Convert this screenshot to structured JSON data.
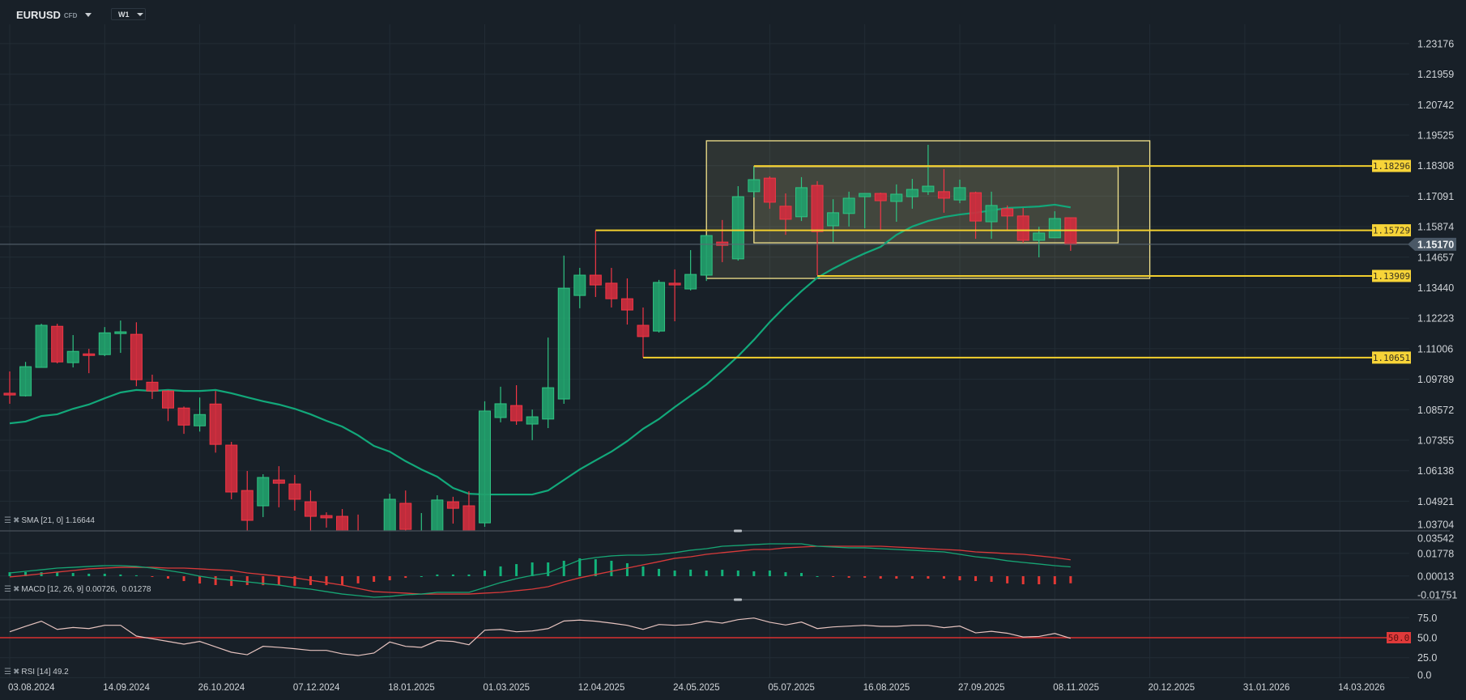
{
  "header": {
    "symbol": "EURUSD",
    "symbol_type": "CFD",
    "timeframe": "W1"
  },
  "indicators": {
    "sma": {
      "label": "SMA [21, 0] 1.16644"
    },
    "macd": {
      "label": "MACD [12, 26, 9] 0.00726,  0.01278"
    },
    "rsi": {
      "label": "RSI [14] 49.2"
    }
  },
  "colors": {
    "background": "#182028",
    "grid": "#222c35",
    "up": "#22a06b",
    "up_border": "#2fc382",
    "down": "#cf2e3e",
    "down_border": "#f23645",
    "sma": "#12a87a",
    "level": "#f2cf2e",
    "macd_line": "#17a574",
    "signal_line": "#d83a3a",
    "rsi_line": "#e6c3bf",
    "rsi_level": "#d93030",
    "price_tag": "#4a5866"
  },
  "chart_data": {
    "type": "candlestick",
    "title": "EURUSD W1",
    "price_axis": {
      "range": [
        1.03704,
        1.23176
      ],
      "ticks": [
        "1.23176",
        "1.21959",
        "1.20742",
        "1.19525",
        "1.18308",
        "1.17091",
        "1.15874",
        "1.14657",
        "1.13440",
        "1.12223",
        "1.11006",
        "1.09789",
        "1.08572",
        "1.07355",
        "1.06138",
        "1.04921",
        "1.03704"
      ]
    },
    "date_labels": [
      {
        "index": 0,
        "label": "03.08.2024"
      },
      {
        "index": 6,
        "label": "14.09.2024"
      },
      {
        "index": 12,
        "label": "26.10.2024"
      },
      {
        "index": 18,
        "label": "07.12.2024"
      },
      {
        "index": 24,
        "label": "18.01.2025"
      },
      {
        "index": 30,
        "label": "01.03.2025"
      },
      {
        "index": 36,
        "label": "12.04.2025"
      },
      {
        "index": 42,
        "label": "24.05.2025"
      },
      {
        "index": 48,
        "label": "05.07.2025"
      },
      {
        "index": 54,
        "label": "16.08.2025"
      },
      {
        "index": 60,
        "label": "27.09.2025"
      },
      {
        "index": 66,
        "label": "08.11.2025"
      },
      {
        "index": 72,
        "label": "20.12.2025"
      },
      {
        "index": 78,
        "label": "31.01.2026"
      },
      {
        "index": 84,
        "label": "14.03.2026"
      }
    ],
    "current_price": {
      "value": 1.1517,
      "label": "1.15170"
    },
    "candles_ohlc": [
      [
        1.0923,
        1.101,
        1.0881,
        1.0916
      ],
      [
        1.0913,
        1.1048,
        1.091,
        1.1029
      ],
      [
        1.1026,
        1.12,
        1.1026,
        1.1194
      ],
      [
        1.119,
        1.12,
        1.1042,
        1.1048
      ],
      [
        1.1045,
        1.1155,
        1.1026,
        1.109
      ],
      [
        1.108,
        1.11,
        1.1003,
        1.1074
      ],
      [
        1.1077,
        1.1187,
        1.1071,
        1.1164
      ],
      [
        1.1161,
        1.1213,
        1.1084,
        1.1168
      ],
      [
        1.1158,
        1.1206,
        1.0951,
        1.0977
      ],
      [
        1.0967,
        1.0997,
        1.09,
        1.0932
      ],
      [
        1.0932,
        1.0935,
        1.0812,
        1.0864
      ],
      [
        1.0864,
        1.087,
        1.0761,
        1.0796
      ],
      [
        1.0793,
        1.0906,
        1.077,
        1.0838
      ],
      [
        1.088,
        1.0932,
        1.0686,
        1.0719
      ],
      [
        1.0716,
        1.0729,
        1.05,
        1.0529
      ],
      [
        1.0535,
        1.0613,
        1.0355,
        1.0416
      ],
      [
        1.0474,
        1.06,
        1.0429,
        1.0587
      ],
      [
        1.0577,
        1.0632,
        1.0468,
        1.0564
      ],
      [
        1.0561,
        1.0597,
        1.0455,
        1.05
      ],
      [
        1.049,
        1.0535,
        1.0374,
        1.0432
      ],
      [
        1.0435,
        1.0448,
        1.0387,
        1.0426
      ],
      [
        1.0432,
        1.0461,
        1.0329,
        1.0348
      ],
      [
        1.0361,
        1.0439,
        1.0232,
        1.028
      ],
      [
        1.03,
        1.0345,
        1.0178,
        1.0245
      ],
      [
        1.027,
        1.0522,
        1.024,
        1.05
      ],
      [
        1.0484,
        1.0535,
        1.034,
        1.038
      ],
      [
        1.03,
        1.0445,
        1.026,
        1.037
      ],
      [
        1.035,
        1.0516,
        1.033,
        1.0497
      ],
      [
        1.049,
        1.051,
        1.0403,
        1.0464
      ],
      [
        1.0474,
        1.0532,
        1.036,
        1.0365
      ],
      [
        1.0406,
        1.0891,
        1.039,
        1.0852
      ],
      [
        1.0826,
        1.0949,
        1.0807,
        1.0881
      ],
      [
        1.0874,
        1.0955,
        1.0797,
        1.0813
      ],
      [
        1.08,
        1.0858,
        1.0736,
        1.0829
      ],
      [
        1.082,
        1.1145,
        1.0784,
        1.0945
      ],
      [
        1.09,
        1.1472,
        1.0881,
        1.1342
      ],
      [
        1.1313,
        1.1423,
        1.1262,
        1.1394
      ],
      [
        1.1394,
        1.1572,
        1.1307,
        1.1355
      ],
      [
        1.1362,
        1.1423,
        1.1265,
        1.13
      ],
      [
        1.13,
        1.1381,
        1.1197,
        1.1255
      ],
      [
        1.1194,
        1.1265,
        1.1065,
        1.1149
      ],
      [
        1.1171,
        1.1375,
        1.1165,
        1.1365
      ],
      [
        1.1362,
        1.1417,
        1.121,
        1.1355
      ],
      [
        1.1339,
        1.1494,
        1.1333,
        1.1397
      ],
      [
        1.1394,
        1.1552,
        1.1371,
        1.1552
      ],
      [
        1.1526,
        1.1614,
        1.1446,
        1.1513
      ],
      [
        1.1459,
        1.1749,
        1.1452,
        1.1707
      ],
      [
        1.1727,
        1.1827,
        1.1704,
        1.1775
      ],
      [
        1.1781,
        1.1788,
        1.1659,
        1.1685
      ],
      [
        1.1669,
        1.172,
        1.1555,
        1.1617
      ],
      [
        1.1627,
        1.1785,
        1.161,
        1.1743
      ],
      [
        1.1752,
        1.1769,
        1.1394,
        1.1568
      ],
      [
        1.1591,
        1.1697,
        1.1526,
        1.1643
      ],
      [
        1.164,
        1.1727,
        1.1588,
        1.1701
      ],
      [
        1.1707,
        1.172,
        1.1581,
        1.172
      ],
      [
        1.172,
        1.1723,
        1.1572,
        1.1691
      ],
      [
        1.1688,
        1.1756,
        1.1607,
        1.1717
      ],
      [
        1.1707,
        1.1778,
        1.1659,
        1.1736
      ],
      [
        1.1727,
        1.1914,
        1.1714,
        1.1749
      ],
      [
        1.1727,
        1.1817,
        1.1643,
        1.1701
      ],
      [
        1.1694,
        1.1775,
        1.1681,
        1.1743
      ],
      [
        1.1723,
        1.1727,
        1.1539,
        1.161
      ],
      [
        1.1607,
        1.1727,
        1.1539,
        1.1672
      ],
      [
        1.1659,
        1.1672,
        1.1575,
        1.163
      ],
      [
        1.163,
        1.1662,
        1.1523,
        1.1533
      ],
      [
        1.1533,
        1.1587,
        1.1465,
        1.1562
      ],
      [
        1.1543,
        1.1649,
        1.1543,
        1.162
      ],
      [
        1.1623,
        1.1623,
        1.1491,
        1.1517
      ]
    ],
    "sma21": [
      1.0803,
      1.081,
      1.0832,
      1.0839,
      1.0861,
      1.0878,
      1.0903,
      1.0926,
      1.0936,
      1.0932,
      1.0936,
      1.0932,
      1.0932,
      1.0936,
      1.0923,
      1.0907,
      1.0891,
      1.0878,
      1.0861,
      1.0839,
      1.0813,
      1.079,
      1.0755,
      1.0713,
      1.069,
      1.0652,
      1.0619,
      1.059,
      1.0545,
      1.0522,
      1.0519,
      1.0519,
      1.0519,
      1.0519,
      1.0535,
      1.0577,
      1.0619,
      1.0655,
      1.069,
      1.0732,
      1.0781,
      1.082,
      1.0868,
      1.0913,
      1.0958,
      1.1013,
      1.1071,
      1.1136,
      1.1207,
      1.1271,
      1.133,
      1.1384,
      1.142,
      1.1452,
      1.1481,
      1.1507,
      1.1555,
      1.1588,
      1.161,
      1.1626,
      1.1636,
      1.1643,
      1.1652,
      1.1662,
      1.1665,
      1.1668,
      1.1675,
      1.16644
    ],
    "horizontal_levels": [
      {
        "price": 1.18296,
        "label": "1.18296",
        "start_index": 47
      },
      {
        "price": 1.15729,
        "label": "1.15729",
        "start_index": 37
      },
      {
        "price": 1.13909,
        "label": "1.13909",
        "start_index": 51
      },
      {
        "price": 1.10651,
        "label": "1.10651",
        "start_index": 40
      }
    ],
    "rectangles": [
      {
        "start_index": 44,
        "end_index": 72,
        "price_top": 1.193,
        "price_bottom": 1.1381
      },
      {
        "start_index": 47,
        "end_index": 70,
        "price_top": 1.1827,
        "price_bottom": 1.1523
      }
    ],
    "macd": {
      "ticks": [
        "0.03542",
        "0.01778",
        "0.00013",
        "-0.01751"
      ],
      "macd": [
        0.0025,
        0.0038,
        0.005,
        0.0063,
        0.0069,
        0.0076,
        0.0082,
        0.0082,
        0.0076,
        0.0063,
        0.0044,
        0.0025,
        0.0,
        -0.0019,
        -0.0032,
        -0.0044,
        -0.0057,
        -0.0069,
        -0.0088,
        -0.0101,
        -0.012,
        -0.0139,
        -0.0151,
        -0.0164,
        -0.0158,
        -0.0145,
        -0.0139,
        -0.0126,
        -0.0126,
        -0.0126,
        -0.0088,
        -0.005,
        -0.0019,
        0.0006,
        0.0025,
        0.0076,
        0.0126,
        0.0145,
        0.0158,
        0.0164,
        0.0164,
        0.017,
        0.0183,
        0.0202,
        0.0214,
        0.0233,
        0.0239,
        0.0246,
        0.0252,
        0.0252,
        0.0252,
        0.0233,
        0.0227,
        0.0221,
        0.0221,
        0.0214,
        0.0208,
        0.0202,
        0.0195,
        0.0189,
        0.017,
        0.0151,
        0.0139,
        0.012,
        0.0107,
        0.0095,
        0.0082,
        0.00726
      ],
      "signal": [
        -0.0006,
        0.0006,
        0.0019,
        0.0032,
        0.0044,
        0.0057,
        0.0063,
        0.0069,
        0.0069,
        0.0069,
        0.0063,
        0.0063,
        0.0057,
        0.005,
        0.0044,
        0.0025,
        0.0013,
        0.0,
        -0.0013,
        -0.0032,
        -0.005,
        -0.0069,
        -0.0095,
        -0.012,
        -0.0126,
        -0.0132,
        -0.0139,
        -0.0139,
        -0.0139,
        -0.0139,
        -0.0132,
        -0.0126,
        -0.0113,
        -0.0101,
        -0.0082,
        -0.0044,
        -0.0013,
        0.0013,
        0.0038,
        0.0063,
        0.0088,
        0.0113,
        0.0139,
        0.0151,
        0.017,
        0.0183,
        0.0195,
        0.0208,
        0.0208,
        0.0221,
        0.0227,
        0.0233,
        0.0233,
        0.0233,
        0.0233,
        0.0233,
        0.0227,
        0.0221,
        0.0214,
        0.0208,
        0.0202,
        0.0189,
        0.0183,
        0.0176,
        0.017,
        0.0158,
        0.0145,
        0.01278
      ]
    },
    "rsi": {
      "ticks": [
        "75.0",
        "50.0",
        "25.0",
        "0.0"
      ],
      "level": {
        "value": 50,
        "label": "50.0"
      },
      "values": [
        57.4,
        64.2,
        70.6,
        60.4,
        62.8,
        61.4,
        65.5,
        65.5,
        52.0,
        48.7,
        45.3,
        41.9,
        45.3,
        38.6,
        31.8,
        28.7,
        39.2,
        37.9,
        36.2,
        34.1,
        34.1,
        29.8,
        27.7,
        30.8,
        44.6,
        39.2,
        37.9,
        46.3,
        45.3,
        41.2,
        59.4,
        60.4,
        57.4,
        58.4,
        61.4,
        70.9,
        72.0,
        70.6,
        68.2,
        65.5,
        60.4,
        66.5,
        65.5,
        66.5,
        70.6,
        68.2,
        72.6,
        74.6,
        69.3,
        65.9,
        69.6,
        61.4,
        63.5,
        64.5,
        65.5,
        64.2,
        64.2,
        65.5,
        65.5,
        62.5,
        64.5,
        56.0,
        58.0,
        55.6,
        50.9,
        51.6,
        55.3,
        49.2
      ]
    }
  }
}
